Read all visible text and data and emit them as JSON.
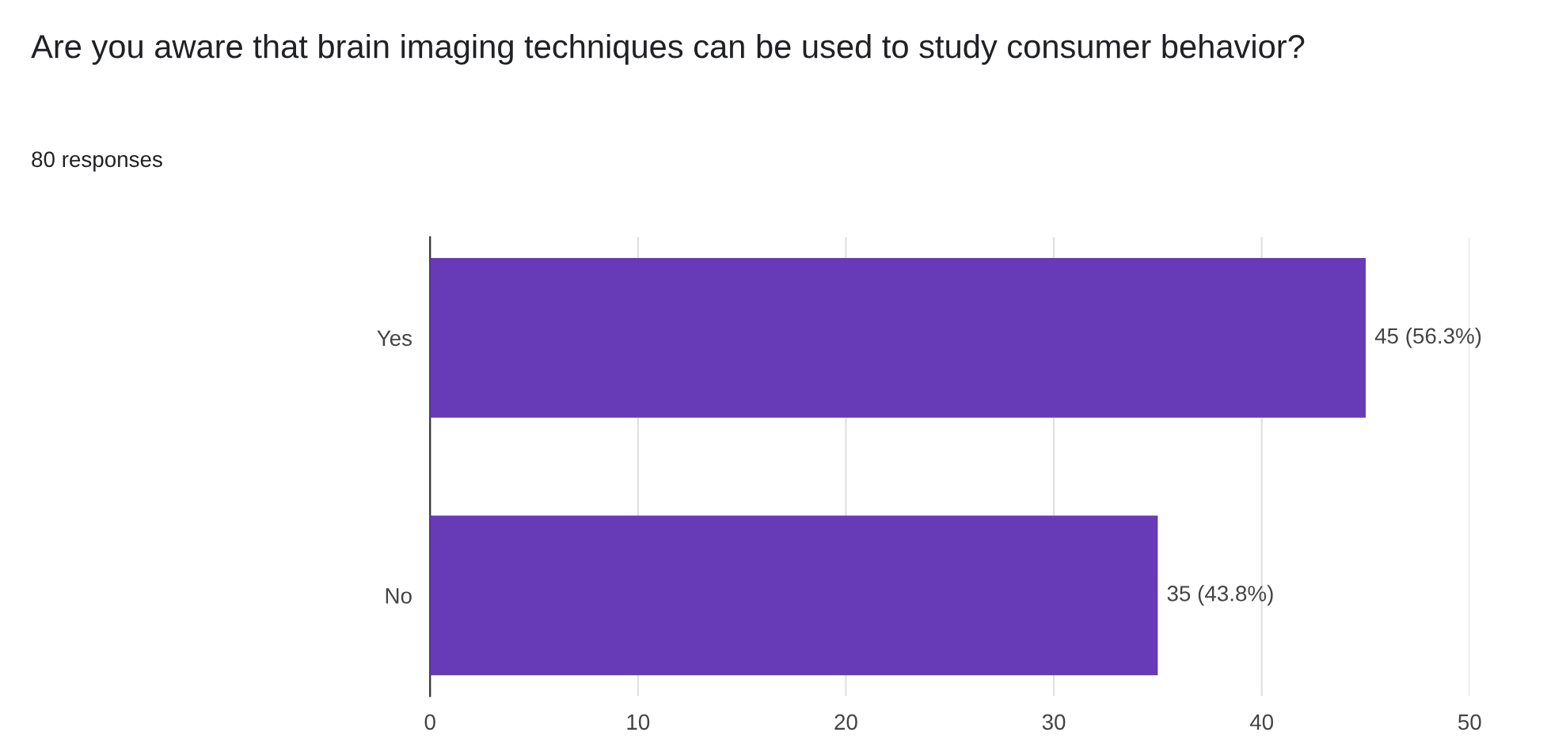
{
  "chart_data": {
    "type": "bar",
    "orientation": "horizontal",
    "title": "Are you aware that brain imaging techniques can be used to study consumer behavior?",
    "subtitle": "80 responses",
    "categories": [
      "Yes",
      "No"
    ],
    "values": [
      45,
      35
    ],
    "color": "#673ab7",
    "value_labels": [
      "45 (56.3%)",
      "35 (43.8%)"
    ],
    "xlim": [
      0,
      50
    ],
    "xticks": [
      0,
      10,
      20,
      30,
      40,
      50
    ],
    "grid": "x",
    "legend": false
  }
}
